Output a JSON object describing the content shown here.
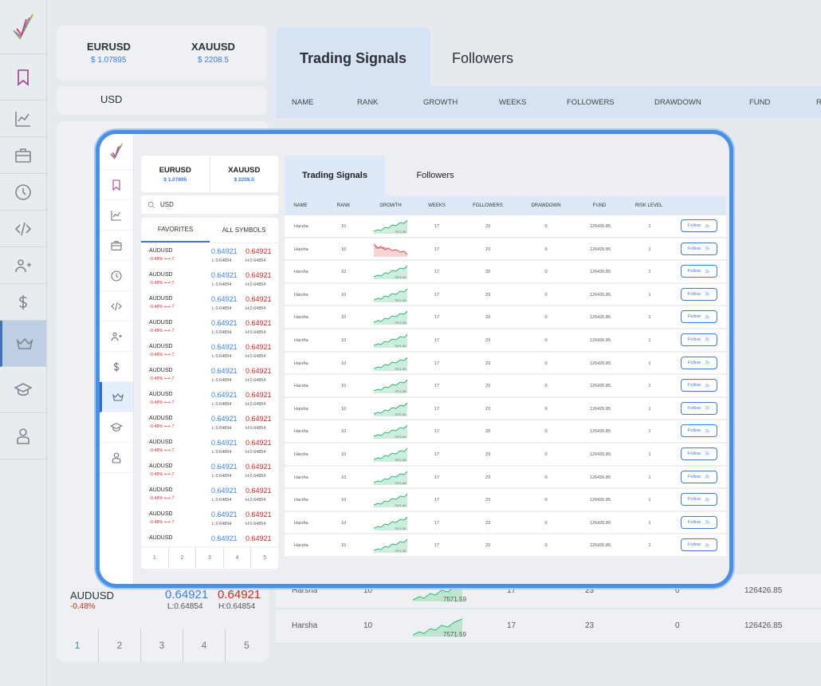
{
  "tickers": [
    {
      "symbol": "EURUSD",
      "price": "$ 1.07895"
    },
    {
      "symbol": "XAUUSD",
      "price": "$ 2208.5"
    }
  ],
  "search": {
    "value": "USD"
  },
  "list_tabs": [
    "FAVORITES",
    "ALL SYMBOLS"
  ],
  "quotes": [
    {
      "symbol": "AUDUSD",
      "change": "-0.48%",
      "spread": "7",
      "bid": "0.64921",
      "ask": "0.64921",
      "low": "L:0.64854",
      "high": "H:0.64854"
    }
  ],
  "pages": [
    "1",
    "2",
    "3",
    "4",
    "5"
  ],
  "main_tabs": [
    "Trading Signals",
    "Followers"
  ],
  "table_headers": [
    "NAME",
    "RANK",
    "GROWTH",
    "WEEKS",
    "FOLLOWERS",
    "DRAWDOWN",
    "FUND",
    "RISK LEVEL"
  ],
  "bg_table_headers": [
    "NAME",
    "RANK",
    "GROWTH",
    "WEEKS",
    "FOLLOWERS",
    "DRAWDOWN",
    "FUND",
    "R"
  ],
  "row_template": {
    "name": "Harsha",
    "rank": "10",
    "growth": "7571.59",
    "weeks": "17",
    "followers": "23",
    "drawdown": "0",
    "fund": "126426.85",
    "risk": "1",
    "action": "Follow"
  },
  "row_trends": [
    "up",
    "down",
    "up",
    "up",
    "up",
    "up",
    "up",
    "up",
    "up",
    "up",
    "up",
    "up",
    "up",
    "up",
    "up"
  ],
  "colors": {
    "accent": "#3e7bd6",
    "negative": "#d12b2b",
    "growth_up": "#2bb27b",
    "growth_down": "#e5484d"
  }
}
